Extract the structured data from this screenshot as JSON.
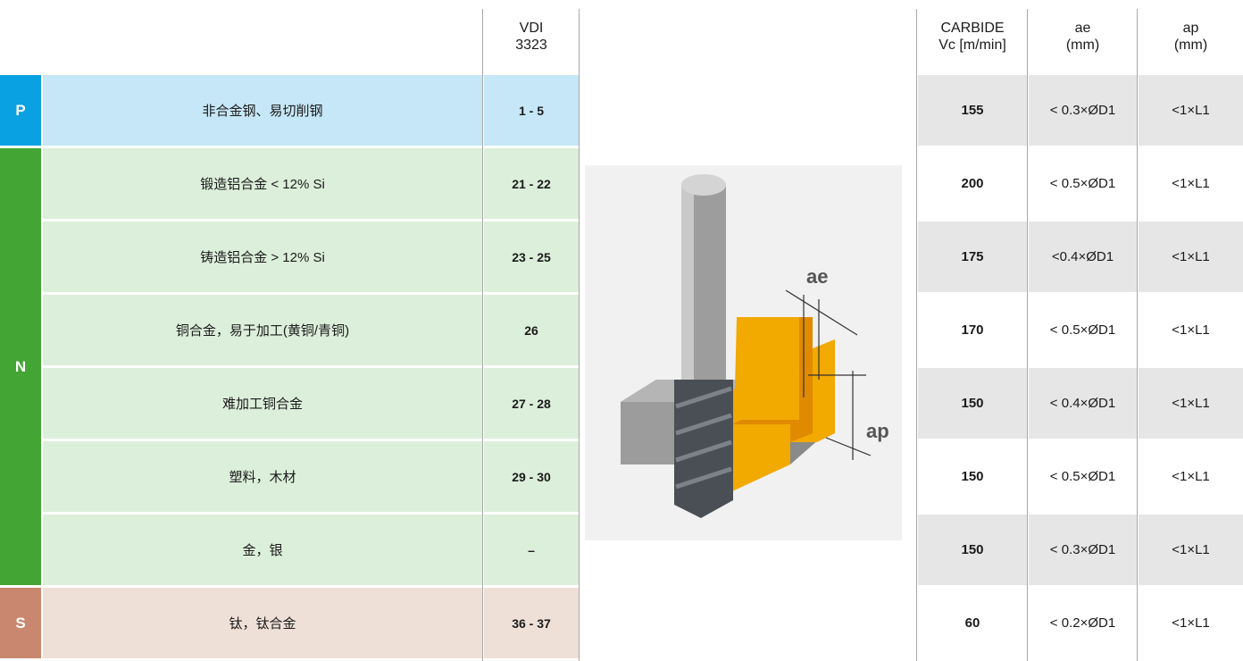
{
  "header": {
    "vdi": [
      "VDI",
      "3323"
    ],
    "carbide": [
      "CARBIDE",
      "Vc [m/min]"
    ],
    "ae": [
      "ae",
      "(mm)"
    ],
    "ap": [
      "ap",
      "(mm)"
    ]
  },
  "groups": [
    {
      "letter": "P",
      "rows": [
        {
          "material": "非合金钢、易切削钢",
          "vdi": "1 - 5",
          "vc": 155,
          "ae": "< 0.3×ØD1",
          "ap": "<1×L1"
        }
      ]
    },
    {
      "letter": "N",
      "rows": [
        {
          "material": "锻造铝合金 < 12% Si",
          "vdi": "21 - 22",
          "vc": 200,
          "ae": "< 0.5×ØD1",
          "ap": "<1×L1"
        },
        {
          "material": "铸造铝合金 > 12% Si",
          "vdi": "23 - 25",
          "vc": 175,
          "ae": "<0.4×ØD1",
          "ap": "<1×L1"
        },
        {
          "material": "铜合金，易于加工(黄铜/青铜)",
          "vdi": "26",
          "vc": 170,
          "ae": "< 0.5×ØD1",
          "ap": "<1×L1"
        },
        {
          "material": "难加工铜合金",
          "vdi": "27 - 28",
          "vc": 150,
          "ae": "< 0.4×ØD1",
          "ap": "<1×L1"
        },
        {
          "material": "塑料，木材",
          "vdi": "29 - 30",
          "vc": 150,
          "ae": "< 0.5×ØD1",
          "ap": "<1×L1"
        },
        {
          "material": "金，银",
          "vdi": "–",
          "vc": 150,
          "ae": "< 0.3×ØD1",
          "ap": "<1×L1"
        }
      ]
    },
    {
      "letter": "S",
      "rows": [
        {
          "material": "钛，钛合金",
          "vdi": "36 - 37",
          "vc": 60,
          "ae": "< 0.2×ØD1",
          "ap": "<1×L1"
        }
      ]
    }
  ],
  "image": {
    "labels": [
      "ae",
      "ap"
    ]
  }
}
